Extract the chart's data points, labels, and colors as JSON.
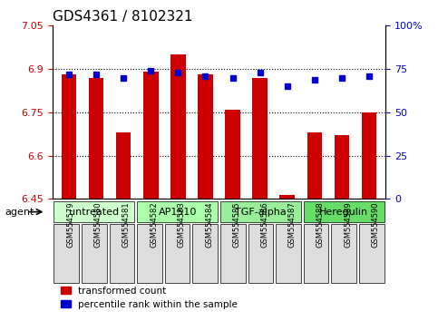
{
  "title": "GDS4361 / 8102321",
  "samples": [
    "GSM554579",
    "GSM554580",
    "GSM554581",
    "GSM554582",
    "GSM554583",
    "GSM554584",
    "GSM554585",
    "GSM554586",
    "GSM554587",
    "GSM554588",
    "GSM554589",
    "GSM554590"
  ],
  "bar_values": [
    6.88,
    6.87,
    6.68,
    6.89,
    6.95,
    6.88,
    6.76,
    6.87,
    6.465,
    6.68,
    6.67,
    6.75
  ],
  "dot_values": [
    72,
    72,
    70,
    74,
    73,
    71,
    70,
    73,
    65,
    69,
    70,
    71
  ],
  "bar_color": "#CC0000",
  "dot_color": "#0000CC",
  "ymin": 6.45,
  "ymax": 7.05,
  "yticks": [
    6.45,
    6.6,
    6.75,
    6.9,
    7.05
  ],
  "ytick_labels": [
    "6.45",
    "6.6",
    "6.75",
    "6.9",
    "7.05"
  ],
  "y2min": 0,
  "y2max": 100,
  "y2ticks": [
    0,
    25,
    50,
    75,
    100
  ],
  "y2tick_labels": [
    "0",
    "25",
    "50",
    "75",
    "100%"
  ],
  "grid_lines": [
    6.6,
    6.75,
    6.9
  ],
  "agent_groups": [
    {
      "label": "untreated",
      "start": 0,
      "end": 3,
      "color": "#ccffcc"
    },
    {
      "label": "AP1510",
      "start": 3,
      "end": 6,
      "color": "#aaffaa"
    },
    {
      "label": "TGF-alpha",
      "start": 6,
      "end": 9,
      "color": "#99ee99"
    },
    {
      "label": "Heregulin",
      "start": 9,
      "end": 12,
      "color": "#66dd66"
    }
  ],
  "agent_label": "agent",
  "legend_bar_label": "transformed count",
  "legend_dot_label": "percentile rank within the sample",
  "title_fontsize": 11,
  "tick_fontsize": 8,
  "label_fontsize": 8,
  "bar_width": 0.55,
  "background_color": "#ffffff",
  "plot_bg_color": "#ffffff",
  "tick_color_left": "#CC0000",
  "tick_color_right": "#0000CC"
}
